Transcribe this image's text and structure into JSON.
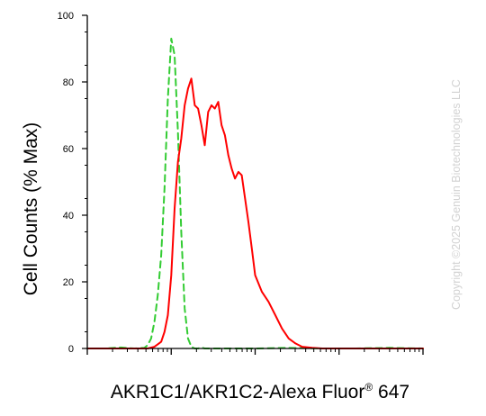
{
  "chart_data": {
    "type": "line",
    "title": "",
    "xlabel": {
      "main": "AKR1C1/AKR1C2-Alexa Fluor",
      "superscript": "®",
      "suffix": " 647"
    },
    "ylabel": "Cell Counts (% Max)",
    "ylim": [
      0,
      100
    ],
    "xlim": [
      0,
      100
    ],
    "x_scale": "log",
    "x_tick_labels_shown": false,
    "y_ticks": [
      "0",
      "20",
      "40",
      "60",
      "80",
      "100"
    ],
    "grid": false,
    "legend": "none",
    "series": [
      {
        "color": "#33cc33",
        "line_style": "dashed",
        "x": [
          0,
          5,
          10,
          14,
          17,
          18,
          19,
          20,
          21,
          22,
          23,
          24,
          25,
          26,
          27,
          28,
          29,
          30,
          31,
          32,
          33,
          34,
          35,
          40,
          50,
          60,
          70,
          80,
          90,
          100
        ],
        "y": [
          0,
          0,
          0.3,
          0,
          0.2,
          1,
          3,
          8,
          16,
          28,
          48,
          75,
          93,
          88,
          65,
          35,
          12,
          3,
          0.5,
          0,
          0,
          0.3,
          0,
          0,
          0,
          0.2,
          0,
          0,
          0.2,
          0
        ]
      },
      {
        "color": "#ff0000",
        "line_style": "solid",
        "x": [
          0,
          10,
          18,
          20,
          22,
          23,
          24,
          25,
          26,
          27,
          28,
          29,
          30,
          31,
          32,
          33,
          34,
          35,
          36,
          37,
          38,
          39,
          40,
          41,
          42,
          43,
          44,
          45,
          46,
          47,
          48,
          49,
          50,
          52,
          54,
          56,
          58,
          60,
          62,
          64,
          67,
          70,
          75,
          80,
          90,
          100
        ],
        "y": [
          0,
          0,
          0,
          0.5,
          2,
          5,
          10,
          22,
          42,
          56,
          63,
          73,
          78,
          81,
          73,
          72,
          67,
          61,
          71,
          73,
          72,
          74,
          67,
          64,
          58,
          54,
          51,
          53,
          52,
          45,
          38,
          30,
          22,
          17,
          14,
          10,
          6,
          3,
          1.5,
          0.5,
          0.2,
          0,
          0,
          0,
          0,
          0
        ]
      }
    ]
  },
  "watermark": "Copyright ©2025 Genuin Biotechnologies LLC"
}
